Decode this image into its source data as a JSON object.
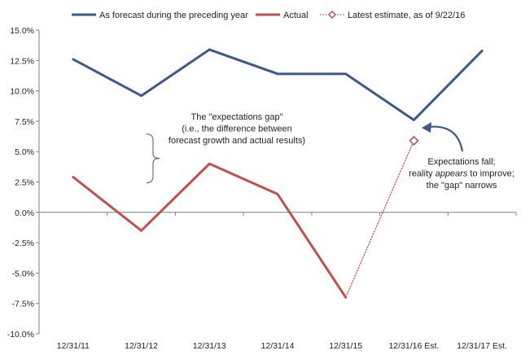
{
  "chart_data": {
    "type": "line",
    "title": "",
    "xlabel": "",
    "ylabel": "",
    "categories": [
      "12/31/11",
      "12/31/12",
      "12/31/13",
      "12/31/14",
      "12/31/15",
      "12/31/16 Est.",
      "12/31/17 Est."
    ],
    "ylim": [
      -10.0,
      15.0
    ],
    "yticks": [
      "15.0%",
      "12.5%",
      "10.0%",
      "7.5%",
      "5.0%",
      "2.5%",
      "0.0%",
      "-2.5%",
      "-5.0%",
      "-7.5%",
      "-10.0%"
    ],
    "ytick_values": [
      15.0,
      12.5,
      10.0,
      7.5,
      5.0,
      2.5,
      0.0,
      -2.5,
      -5.0,
      -7.5,
      -10.0
    ],
    "grid": false,
    "legend_position": "top",
    "series": [
      {
        "name": "As forecast during the preceding year",
        "color": "#3b5a8c",
        "style": "solid",
        "values": [
          12.6,
          9.6,
          13.4,
          11.4,
          11.4,
          7.6,
          13.3
        ]
      },
      {
        "name": "Actual",
        "color": "#c0504d",
        "style": "solid",
        "values": [
          2.9,
          -1.5,
          4.0,
          1.5,
          -7.0,
          null,
          null
        ]
      },
      {
        "name": "Latest estimate, as of 9/22/16",
        "color": "#c0504d",
        "style": "dotted",
        "marker": "diamond",
        "values": [
          null,
          null,
          null,
          null,
          -7.0,
          5.9,
          null
        ]
      }
    ],
    "annotations": [
      {
        "id": "gap",
        "lines": [
          "The \"expectations gap\"",
          "(i.e., the difference between",
          "forecast growth and actual results)"
        ]
      },
      {
        "id": "fall",
        "lines": [
          [
            {
              "t": "Expectations fall;"
            }
          ],
          [
            {
              "t": "reality "
            },
            {
              "t": "appears",
              "i": true
            },
            {
              "t": " to improve;"
            }
          ],
          [
            {
              "t": "the \"gap\" narrows"
            }
          ]
        ]
      }
    ]
  }
}
